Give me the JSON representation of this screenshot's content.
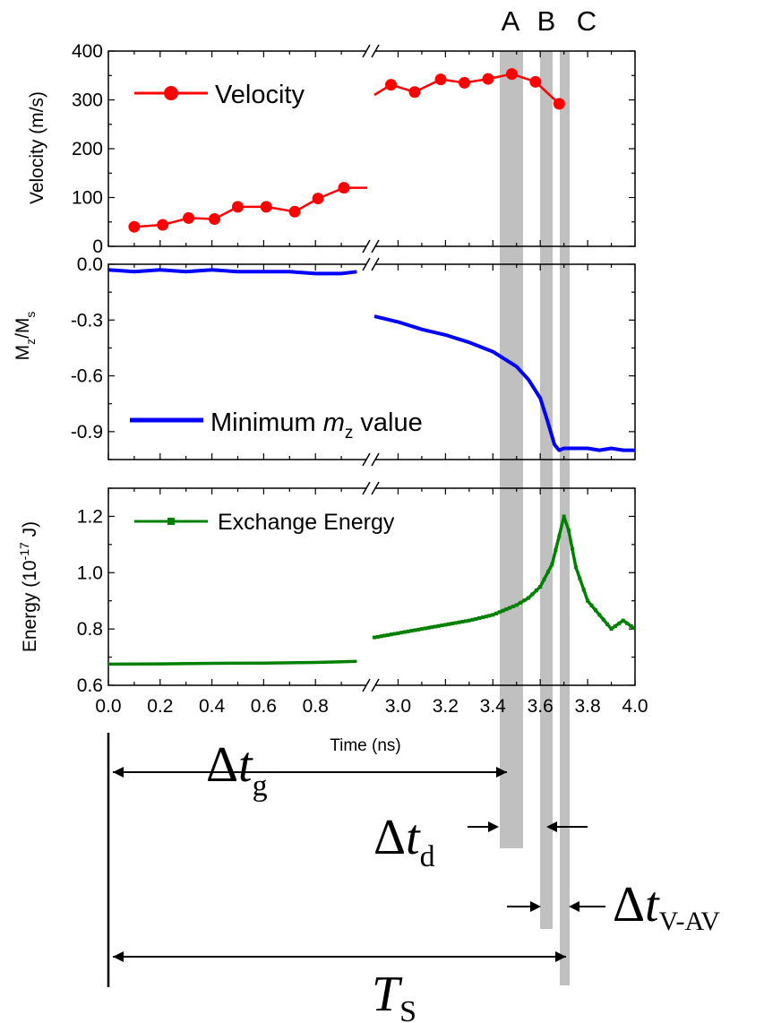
{
  "chart_data": [
    {
      "type": "line",
      "ylabel": "Velocity (m/s)",
      "ylim": [
        0,
        400
      ],
      "yticks": [
        "0",
        "100",
        "200",
        "300",
        "400"
      ],
      "x_break": [
        1.0,
        2.9
      ],
      "series": [
        {
          "name": "Velocity",
          "color": "#ff0000",
          "marker": "circle",
          "x": [
            0.1,
            0.21,
            0.31,
            0.41,
            0.5,
            0.61,
            0.72,
            0.81,
            0.91,
            2.97,
            3.07,
            3.18,
            3.28,
            3.38,
            3.48,
            3.58,
            3.68
          ],
          "y": [
            40,
            44,
            58,
            56,
            81,
            81,
            71,
            98,
            120,
            331,
            316,
            342,
            335,
            343,
            353,
            337,
            292
          ]
        }
      ]
    },
    {
      "type": "line",
      "ylabel": "M",
      "ylabel_sub1": "z",
      "ylabel_mid": "/M",
      "ylabel_sub2": "s",
      "ylim": [
        -1.05,
        0
      ],
      "yticks": [
        "0.0",
        "-0.3",
        "-0.6",
        "-0.9"
      ],
      "series": [
        {
          "name": "Minimum",
          "name_italic": "m",
          "name_sub": "z",
          "name_tail": " value",
          "color": "#0000ff",
          "x": [
            0.0,
            0.1,
            0.2,
            0.3,
            0.4,
            0.5,
            0.6,
            0.7,
            0.8,
            0.9,
            0.96,
            2.9,
            3.0,
            3.1,
            3.2,
            3.3,
            3.4,
            3.5,
            3.55,
            3.6,
            3.63,
            3.66,
            3.68,
            3.7,
            3.75,
            3.8,
            3.85,
            3.9,
            3.95,
            4.0
          ],
          "y": [
            -0.03,
            -0.04,
            -0.03,
            -0.04,
            -0.03,
            -0.04,
            -0.04,
            -0.04,
            -0.05,
            -0.05,
            -0.04,
            -0.28,
            -0.31,
            -0.35,
            -0.38,
            -0.42,
            -0.47,
            -0.55,
            -0.62,
            -0.72,
            -0.84,
            -0.97,
            -1.0,
            -0.99,
            -0.99,
            -0.99,
            -1.0,
            -0.99,
            -1.0,
            -1.0
          ]
        }
      ]
    },
    {
      "type": "line",
      "ylabel": "Energy (10",
      "ylabel_sup": "-17",
      "ylabel_tail": " J)",
      "ylim": [
        0.6,
        1.3
      ],
      "yticks": [
        "0.6",
        "0.8",
        "1.0",
        "1.2"
      ],
      "xlabel": "Time (ns)",
      "xticks": [
        "0.0",
        "0.2",
        "0.4",
        "0.6",
        "0.8",
        "3.0",
        "3.2",
        "3.4",
        "3.6",
        "3.8",
        "4.0"
      ],
      "series": [
        {
          "name": "Exchange Energy",
          "color": "#008000",
          "marker": "square",
          "x": [
            0.0,
            0.2,
            0.4,
            0.6,
            0.8,
            0.96,
            2.9,
            3.0,
            3.1,
            3.2,
            3.3,
            3.4,
            3.5,
            3.55,
            3.6,
            3.65,
            3.68,
            3.7,
            3.72,
            3.75,
            3.8,
            3.85,
            3.9,
            3.95,
            4.0
          ],
          "y": [
            0.675,
            0.676,
            0.678,
            0.679,
            0.681,
            0.685,
            0.77,
            0.785,
            0.8,
            0.815,
            0.83,
            0.85,
            0.885,
            0.91,
            0.95,
            1.03,
            1.13,
            1.2,
            1.15,
            1.02,
            0.9,
            0.85,
            0.8,
            0.83,
            0.8
          ]
        }
      ]
    }
  ],
  "markers": [
    "A",
    "B",
    "C"
  ],
  "annotations": {
    "delta": "Δ",
    "t": "t",
    "g": "g",
    "d": "d",
    "vav": "V-AV",
    "T": "T",
    "S": "S"
  }
}
